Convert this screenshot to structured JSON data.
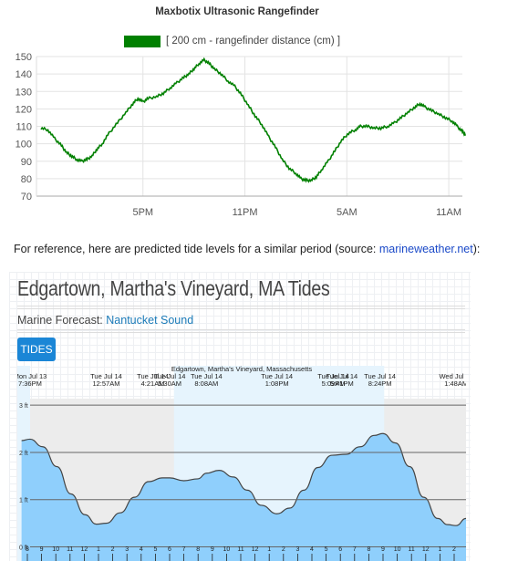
{
  "chart_data": [
    {
      "type": "line",
      "title": "Maxbotix Ultrasonic Rangefinder",
      "series": [
        {
          "name": "[ 200 cm - rangefinder distance (cm) ]",
          "color": "#008000"
        }
      ],
      "y_ticks": [
        150,
        140,
        130,
        120,
        110,
        100,
        90,
        80,
        70
      ],
      "ylim": [
        70,
        150
      ],
      "x_ticks": [
        {
          "label": "5PM",
          "t": 6
        },
        {
          "label": "11PM",
          "t": 12
        },
        {
          "label": "5AM",
          "t": 18
        },
        {
          "label": "11AM",
          "t": 24
        }
      ],
      "xlim": [
        0,
        24.8
      ],
      "x_unit": "hours from 11AM",
      "points": [
        [
          0.0,
          109
        ],
        [
          0.4,
          108
        ],
        [
          0.8,
          103
        ],
        [
          1.2,
          99
        ],
        [
          1.5,
          95
        ],
        [
          1.8,
          93
        ],
        [
          2.1,
          91
        ],
        [
          2.4,
          90
        ],
        [
          2.7,
          91
        ],
        [
          3.0,
          93
        ],
        [
          3.3,
          97
        ],
        [
          3.6,
          100
        ],
        [
          4.0,
          106
        ],
        [
          4.5,
          112
        ],
        [
          5.0,
          118
        ],
        [
          5.4,
          123
        ],
        [
          5.7,
          126
        ],
        [
          6.0,
          124
        ],
        [
          6.3,
          126
        ],
        [
          6.8,
          127
        ],
        [
          7.2,
          129
        ],
        [
          7.6,
          132
        ],
        [
          8.0,
          135
        ],
        [
          8.4,
          138
        ],
        [
          8.7,
          140
        ],
        [
          9.0,
          143
        ],
        [
          9.3,
          146
        ],
        [
          9.6,
          148
        ],
        [
          9.9,
          146
        ],
        [
          10.2,
          143
        ],
        [
          10.6,
          140
        ],
        [
          11.0,
          136
        ],
        [
          11.4,
          133
        ],
        [
          11.8,
          128
        ],
        [
          12.2,
          122
        ],
        [
          12.6,
          116
        ],
        [
          13.0,
          111
        ],
        [
          13.4,
          104
        ],
        [
          13.8,
          98
        ],
        [
          14.2,
          91
        ],
        [
          14.6,
          86
        ],
        [
          15.0,
          83
        ],
        [
          15.3,
          80
        ],
        [
          15.6,
          79
        ],
        [
          15.9,
          79
        ],
        [
          16.2,
          81
        ],
        [
          16.5,
          85
        ],
        [
          16.9,
          90
        ],
        [
          17.3,
          96
        ],
        [
          17.7,
          102
        ],
        [
          18.1,
          106
        ],
        [
          18.5,
          108
        ],
        [
          18.8,
          110
        ],
        [
          19.2,
          110
        ],
        [
          19.6,
          109
        ],
        [
          20.0,
          109
        ],
        [
          20.4,
          110
        ],
        [
          20.8,
          112
        ],
        [
          21.2,
          115
        ],
        [
          21.6,
          118
        ],
        [
          22.0,
          121
        ],
        [
          22.3,
          123
        ],
        [
          22.6,
          121
        ],
        [
          23.0,
          119
        ],
        [
          23.4,
          117
        ],
        [
          23.8,
          115
        ],
        [
          24.2,
          113
        ],
        [
          24.5,
          110
        ],
        [
          24.8,
          107
        ],
        [
          25.0,
          105
        ]
      ]
    },
    {
      "type": "area",
      "title": "Edgartown, Martha's Vineyard, Massachusetts",
      "y_ticks": [
        {
          "label": "3 ft",
          "v": 3
        },
        {
          "label": "2 ft",
          "v": 2
        },
        {
          "label": "1 ft",
          "v": 1
        },
        {
          "label": "0 ft",
          "v": 0
        }
      ],
      "ylim": [
        -0.3,
        3.1
      ],
      "xlim": [
        -0.3,
        47.4
      ],
      "x_unit": "hours from Jul 13 7:00PM",
      "events": [
        {
          "label": "Mon Jul 13\n7:36PM",
          "t": 0.6
        },
        {
          "label": "Tue Jul 14\n12:57AM",
          "t": 6.0
        },
        {
          "label": "Tue Jul 14\n4:21AM",
          "t": 9.3
        },
        {
          "label": "Tue Jul 14\n5:30AM",
          "t": 10.5
        },
        {
          "label": "Tue Jul 14\n8:08AM",
          "t": 13.1
        },
        {
          "label": "Tue Jul 14\n1:08PM",
          "t": 18.1
        },
        {
          "label": "Tue Jul 14\n5:09PM",
          "t": 22.1
        },
        {
          "label": "Tue Jul 14\n5:41PM",
          "t": 22.7
        },
        {
          "label": "Tue Jul 14\n8:24PM",
          "t": 25.4
        },
        {
          "label": "Wed Jul 15\n1:48AM",
          "t": 30.8
        }
      ],
      "hour_labels": [
        "8",
        "9",
        "10",
        "11",
        "12",
        "1",
        "2",
        "3",
        "4",
        "5",
        "6",
        "7",
        "8",
        "9",
        "10",
        "11",
        "12",
        "1",
        "2",
        "3",
        "4",
        "5",
        "6",
        "7",
        "8",
        "9",
        "10",
        "11",
        "12",
        "1",
        "2"
      ],
      "points": [
        [
          0.0,
          2.25
        ],
        [
          0.6,
          2.28
        ],
        [
          1.5,
          2.12
        ],
        [
          2.5,
          1.7
        ],
        [
          3.5,
          1.12
        ],
        [
          4.5,
          0.68
        ],
        [
          5.3,
          0.48
        ],
        [
          6.0,
          0.5
        ],
        [
          7.0,
          0.72
        ],
        [
          8.0,
          1.05
        ],
        [
          9.0,
          1.38
        ],
        [
          10.0,
          1.46
        ],
        [
          10.5,
          1.46
        ],
        [
          11.5,
          1.4
        ],
        [
          12.5,
          1.44
        ],
        [
          13.1,
          1.56
        ],
        [
          14.0,
          1.62
        ],
        [
          15.0,
          1.48
        ],
        [
          16.0,
          1.2
        ],
        [
          17.0,
          0.88
        ],
        [
          18.1,
          0.7
        ],
        [
          19.0,
          0.82
        ],
        [
          20.0,
          1.2
        ],
        [
          21.0,
          1.68
        ],
        [
          22.0,
          1.94
        ],
        [
          23.0,
          1.96
        ],
        [
          24.0,
          2.12
        ],
        [
          25.0,
          2.36
        ],
        [
          25.6,
          2.4
        ],
        [
          26.5,
          2.2
        ],
        [
          27.5,
          1.7
        ],
        [
          28.5,
          1.05
        ],
        [
          29.5,
          0.6
        ],
        [
          30.2,
          0.47
        ],
        [
          30.8,
          0.45
        ],
        [
          31.5,
          0.6
        ],
        [
          32.0,
          0.72
        ]
      ],
      "day_shade_hours": [
        10.8,
        25.7
      ],
      "colors": {
        "fill": "#8fcffc",
        "line": "#444444",
        "night": "#ececec",
        "day": "#e6f4fd"
      }
    }
  ],
  "reference": {
    "text": "For reference, here are predicted tide levels for a similar period (source: ",
    "link": "marineweather.net",
    "tail": "):"
  },
  "tide_page": {
    "title": "Edgartown, Martha's Vineyard, MA Tides",
    "marine_label": "Marine Forecast: ",
    "marine_link": "Nantucket Sound",
    "tides_button": "TIDES"
  }
}
